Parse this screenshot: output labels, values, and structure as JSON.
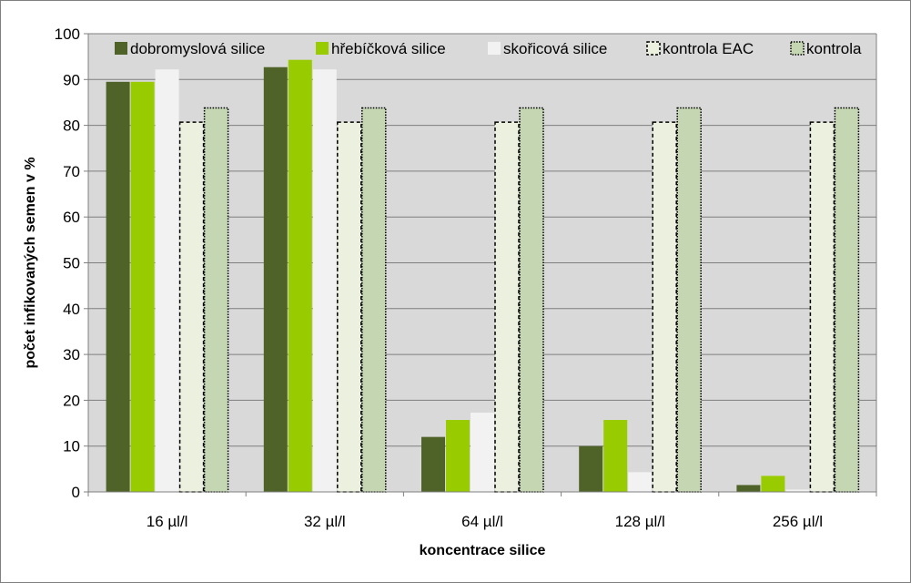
{
  "chart_data": {
    "type": "bar",
    "title": "",
    "xlabel": "koncentrace silice",
    "ylabel": "počet infikovaných semen v %",
    "categories": [
      "16 µl/l",
      "32 µl/l",
      "64 µl/l",
      "128 µl/l",
      "256 µl/l"
    ],
    "ylim": [
      0,
      100
    ],
    "yticks": [
      0,
      10,
      20,
      30,
      40,
      50,
      60,
      70,
      80,
      90,
      100
    ],
    "grid": true,
    "legend_position": "top",
    "plot_background": "#d9d9d9",
    "series": [
      {
        "name": "dobromyslová silice",
        "values": [
          89.5,
          92.7,
          12.0,
          10.0,
          1.5
        ],
        "color": "#4f6228",
        "style": "solid"
      },
      {
        "name": "hřebíčková silice",
        "values": [
          89.5,
          94.3,
          15.7,
          15.7,
          3.5
        ],
        "color": "#99cc00",
        "style": "solid"
      },
      {
        "name": "skořicová silice",
        "values": [
          92.2,
          92.2,
          17.3,
          4.3,
          0.5
        ],
        "color": "#f2f2f2",
        "style": "solid"
      },
      {
        "name": "kontrola EAC",
        "values": [
          80.7,
          80.7,
          80.7,
          80.7,
          80.7
        ],
        "color": "#ebf1de",
        "style": "dashed"
      },
      {
        "name": "kontrola",
        "values": [
          83.8,
          83.8,
          83.8,
          83.8,
          83.8
        ],
        "color": "#c4d7b2",
        "style": "dotted"
      }
    ]
  }
}
